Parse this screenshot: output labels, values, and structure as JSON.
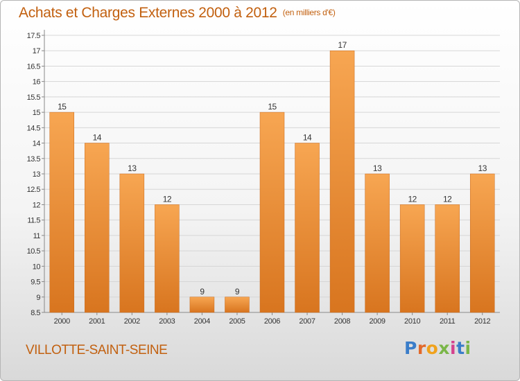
{
  "title": "Achats et Charges Externes 2000 à 2012",
  "subtitle": "(en milliers d'€)",
  "commune": "VILLOTTE-SAINT-SEINE",
  "logo_text": "Proxiti",
  "colors": {
    "bar": "#f09a40",
    "bar_dark": "#d7741f",
    "title": "#c2600f",
    "grid": "#d4d4d4"
  },
  "chart_data": {
    "type": "bar",
    "categories": [
      "2000",
      "2001",
      "2002",
      "2003",
      "2004",
      "2005",
      "2006",
      "2007",
      "2008",
      "2009",
      "2010",
      "2011",
      "2012"
    ],
    "values": [
      15,
      14,
      13,
      12,
      9,
      9,
      15,
      14,
      17,
      13,
      12,
      12,
      13
    ],
    "data_labels": [
      "15",
      "14",
      "13",
      "12",
      "9",
      "9",
      "15",
      "14",
      "17",
      "13",
      "12",
      "12",
      "13"
    ],
    "y_ticks": [
      "8.5",
      "9",
      "9.5",
      "10",
      "10.5",
      "11",
      "11.5",
      "12",
      "12.5",
      "13",
      "13.5",
      "14",
      "14.5",
      "15",
      "15.5",
      "16",
      "16.5",
      "17",
      "17.5"
    ],
    "ylim": [
      8.5,
      17.5
    ],
    "grid": true,
    "legend": "none"
  }
}
